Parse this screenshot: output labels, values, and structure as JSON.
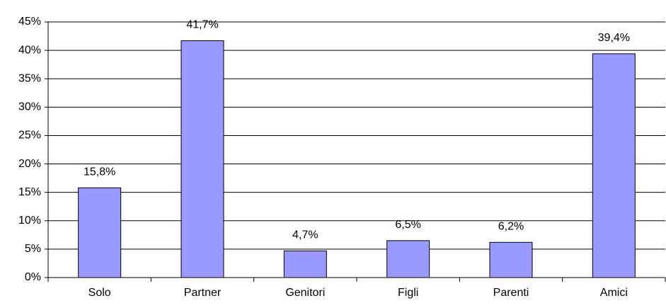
{
  "chart_data": {
    "type": "bar",
    "categories": [
      "Solo",
      "Partner",
      "Genitori",
      "Figli",
      "Parenti",
      "Amici"
    ],
    "values": [
      15.8,
      41.7,
      4.7,
      6.5,
      6.2,
      39.4
    ],
    "value_labels": [
      "15,8%",
      "41,7%",
      "4,7%",
      "6,5%",
      "6,2%",
      "39,4%"
    ],
    "color": "#9999ff",
    "ylim": [
      0,
      45
    ],
    "yticks": [
      {
        "value": 0,
        "label": "0%"
      },
      {
        "value": 5,
        "label": "5%"
      },
      {
        "value": 10,
        "label": "10%"
      },
      {
        "value": 15,
        "label": "15%"
      },
      {
        "value": 20,
        "label": "20%"
      },
      {
        "value": 25,
        "label": "25%"
      },
      {
        "value": 30,
        "label": "30%"
      },
      {
        "value": 35,
        "label": "35%"
      },
      {
        "value": 40,
        "label": "40%"
      },
      {
        "value": 45,
        "label": "45%"
      }
    ],
    "grid": true
  }
}
